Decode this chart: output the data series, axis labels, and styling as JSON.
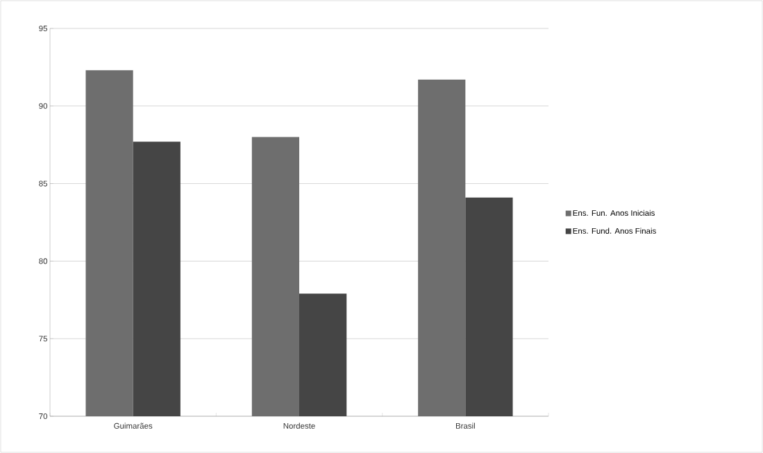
{
  "chart_data": {
    "type": "bar",
    "categories": [
      "Guimarães",
      "Nordeste",
      "Brasil"
    ],
    "series": [
      {
        "name": "Ens. Fun. Anos Iniciais",
        "color": "#6e6e6e",
        "values": [
          92.3,
          88.0,
          91.7
        ]
      },
      {
        "name": "Ens. Fund. Anos Finais",
        "color": "#454545",
        "values": [
          87.7,
          77.9,
          84.1
        ]
      }
    ],
    "ylim": [
      70,
      95
    ],
    "yticks": [
      70,
      75,
      80,
      85,
      90,
      95
    ],
    "grid": "y",
    "legend": "right"
  }
}
